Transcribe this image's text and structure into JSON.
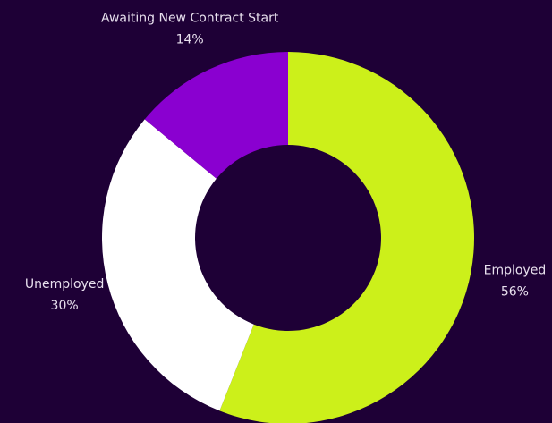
{
  "chart_data": {
    "type": "donut",
    "categories": [
      "Employed",
      "Unemployed",
      "Awaiting New Contract Start"
    ],
    "values": [
      56,
      30,
      14
    ],
    "value_labels": [
      "56%",
      "30%",
      "14%"
    ],
    "colors": [
      "#ccf01a",
      "#ffffff",
      "#8a00d0"
    ]
  }
}
